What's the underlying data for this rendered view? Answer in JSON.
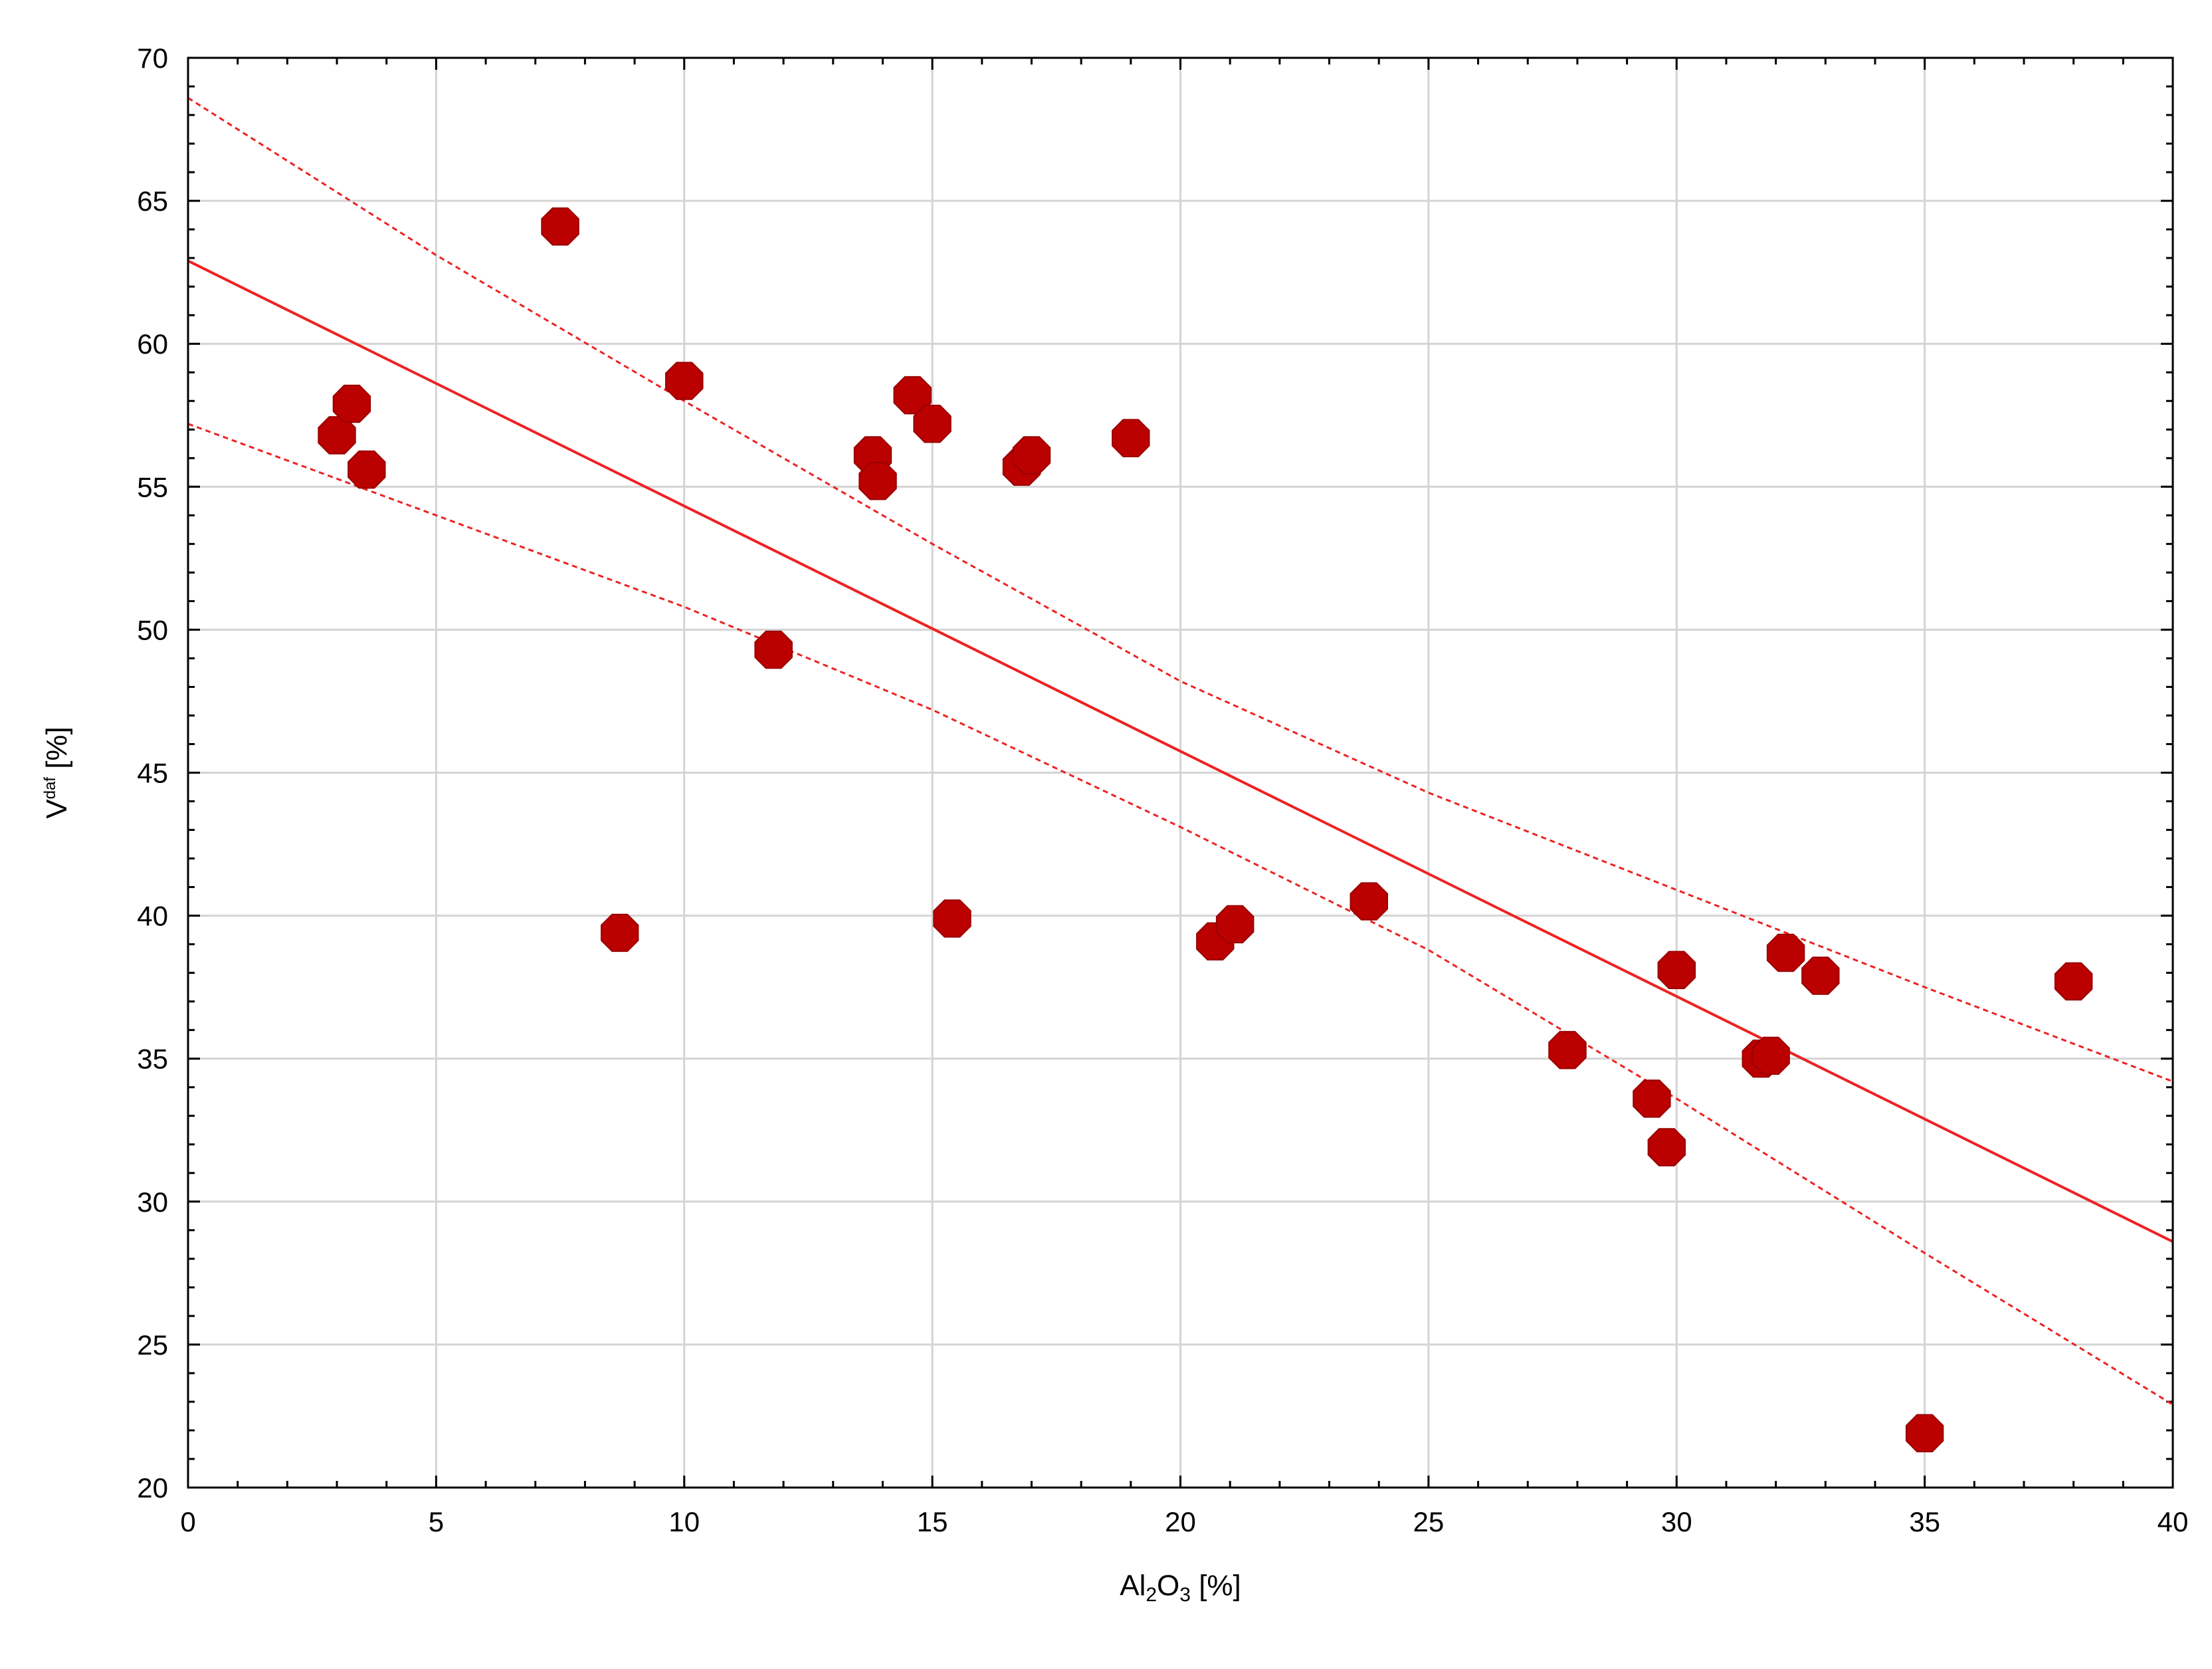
{
  "chart_data": {
    "type": "scatter",
    "title": "",
    "xlabel": {
      "parts": [
        {
          "text": "Al",
          "style": "normal"
        },
        {
          "text": "2",
          "style": "sub"
        },
        {
          "text": "O",
          "style": "normal"
        },
        {
          "text": "3",
          "style": "sub"
        },
        {
          "text": " [%]",
          "style": "normal"
        }
      ]
    },
    "ylabel": {
      "parts": [
        {
          "text": "V",
          "style": "normal"
        },
        {
          "text": "daf",
          "style": "sup"
        },
        {
          "text": " [%]",
          "style": "normal"
        }
      ]
    },
    "xlim": [
      0,
      40
    ],
    "ylim": [
      20,
      70
    ],
    "xticks": [
      0,
      5,
      10,
      15,
      20,
      25,
      30,
      35,
      40
    ],
    "yticks": [
      20,
      25,
      30,
      35,
      40,
      45,
      50,
      55,
      60,
      65,
      70
    ],
    "xminor_step": 1,
    "yminor_step": 1,
    "grid": true,
    "legend": "none",
    "colors": {
      "marker": "#bb0000",
      "fit_line": "#ee2222",
      "grid": "#d4d4d4",
      "frame": "#000000"
    },
    "series": [
      {
        "type": "scatter",
        "marker": "octagon",
        "points": [
          {
            "x": 3.0,
            "y": 56.8
          },
          {
            "x": 3.3,
            "y": 57.9
          },
          {
            "x": 3.6,
            "y": 55.6
          },
          {
            "x": 7.5,
            "y": 64.1
          },
          {
            "x": 8.7,
            "y": 39.4
          },
          {
            "x": 10.0,
            "y": 58.7
          },
          {
            "x": 11.8,
            "y": 49.3
          },
          {
            "x": 13.8,
            "y": 56.1
          },
          {
            "x": 13.9,
            "y": 55.2
          },
          {
            "x": 14.6,
            "y": 58.2
          },
          {
            "x": 15.0,
            "y": 57.2
          },
          {
            "x": 15.4,
            "y": 39.9
          },
          {
            "x": 16.8,
            "y": 55.7
          },
          {
            "x": 17.0,
            "y": 56.1
          },
          {
            "x": 19.0,
            "y": 56.7
          },
          {
            "x": 20.7,
            "y": 39.1
          },
          {
            "x": 21.1,
            "y": 39.7
          },
          {
            "x": 23.8,
            "y": 40.5
          },
          {
            "x": 27.8,
            "y": 35.3
          },
          {
            "x": 29.5,
            "y": 33.6
          },
          {
            "x": 29.8,
            "y": 31.9
          },
          {
            "x": 30.0,
            "y": 38.1
          },
          {
            "x": 31.7,
            "y": 35.0
          },
          {
            "x": 31.9,
            "y": 35.1
          },
          {
            "x": 32.2,
            "y": 38.7
          },
          {
            "x": 32.9,
            "y": 37.9
          },
          {
            "x": 35.0,
            "y": 21.9
          },
          {
            "x": 38.0,
            "y": 37.7
          }
        ]
      }
    ],
    "regression": {
      "style": "solid",
      "x": [
        0,
        40
      ],
      "y": [
        62.9,
        28.6
      ]
    },
    "confidence_band": [
      {
        "style": "dotted",
        "name": "upper",
        "x": [
          0,
          5,
          10,
          15,
          20,
          25,
          30,
          35,
          40
        ],
        "y": [
          68.6,
          63.1,
          58.0,
          53.0,
          48.2,
          44.3,
          40.9,
          37.5,
          34.2
        ]
      },
      {
        "style": "dotted",
        "name": "lower",
        "x": [
          0,
          5,
          10,
          15,
          20,
          25,
          30,
          35,
          40
        ],
        "y": [
          57.2,
          54.0,
          50.8,
          47.2,
          43.1,
          38.8,
          33.6,
          28.2,
          22.9
        ]
      }
    ]
  }
}
